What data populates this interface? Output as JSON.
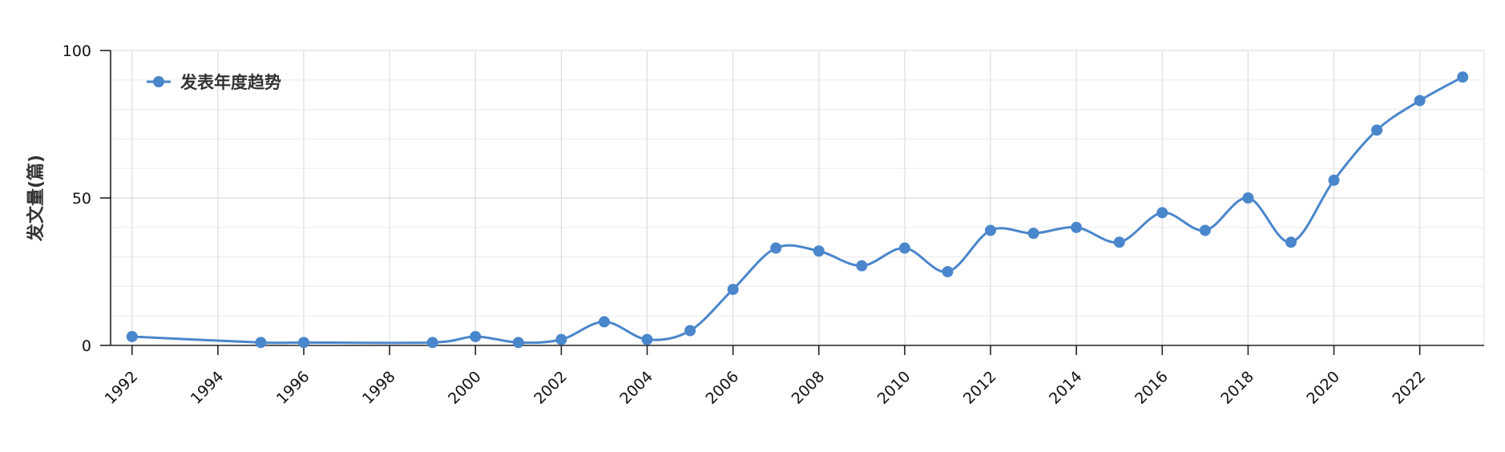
{
  "chart_data": {
    "type": "line",
    "ylabel": "发文量(篇)",
    "xlabel": "",
    "ylim": [
      0,
      100
    ],
    "yticks": [
      0,
      50,
      100
    ],
    "xlim": [
      1991.5,
      2023.5
    ],
    "xticks": [
      1992,
      1994,
      1996,
      1998,
      2000,
      2002,
      2004,
      2006,
      2008,
      2010,
      2012,
      2014,
      2016,
      2018,
      2020,
      2022
    ],
    "grid": true,
    "legend": "top-left",
    "color": "#4a86cc",
    "series": [
      {
        "name": "发表年度趋势",
        "x": [
          1992,
          1995,
          1996,
          1999,
          2000,
          2001,
          2002,
          2003,
          2004,
          2005,
          2006,
          2007,
          2008,
          2009,
          2010,
          2011,
          2012,
          2013,
          2014,
          2015,
          2016,
          2017,
          2018,
          2019,
          2020,
          2021,
          2022,
          2023
        ],
        "y": [
          3,
          1,
          1,
          1,
          3,
          1,
          2,
          8,
          2,
          5,
          19,
          33,
          32,
          27,
          33,
          25,
          39,
          38,
          40,
          35,
          45,
          39,
          50,
          35,
          56,
          73,
          83,
          91
        ]
      }
    ]
  }
}
